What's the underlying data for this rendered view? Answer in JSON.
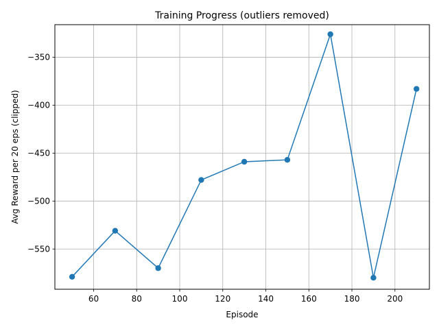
{
  "chart_data": {
    "type": "line",
    "title": "Training Progress (outliers removed)",
    "xlabel": "Episode",
    "ylabel": "Avg Reward per 20 eps (clipped)",
    "x": [
      50,
      70,
      90,
      110,
      130,
      150,
      170,
      190,
      210
    ],
    "series": [
      {
        "values": [
          -579,
          -531,
          -570,
          -478,
          -459,
          -457,
          -326,
          -580,
          -383
        ],
        "color": "#1f77b4",
        "marker": "circle"
      }
    ],
    "xlim": [
      42,
      216
    ],
    "ylim": [
      -592,
      -316
    ],
    "xticks": [
      60,
      80,
      100,
      120,
      140,
      160,
      180,
      200
    ],
    "yticks": [
      -550,
      -500,
      -450,
      -400,
      -350
    ],
    "ytick_labels": [
      "−550",
      "−500",
      "−450",
      "−400",
      "−350"
    ],
    "grid": true
  }
}
